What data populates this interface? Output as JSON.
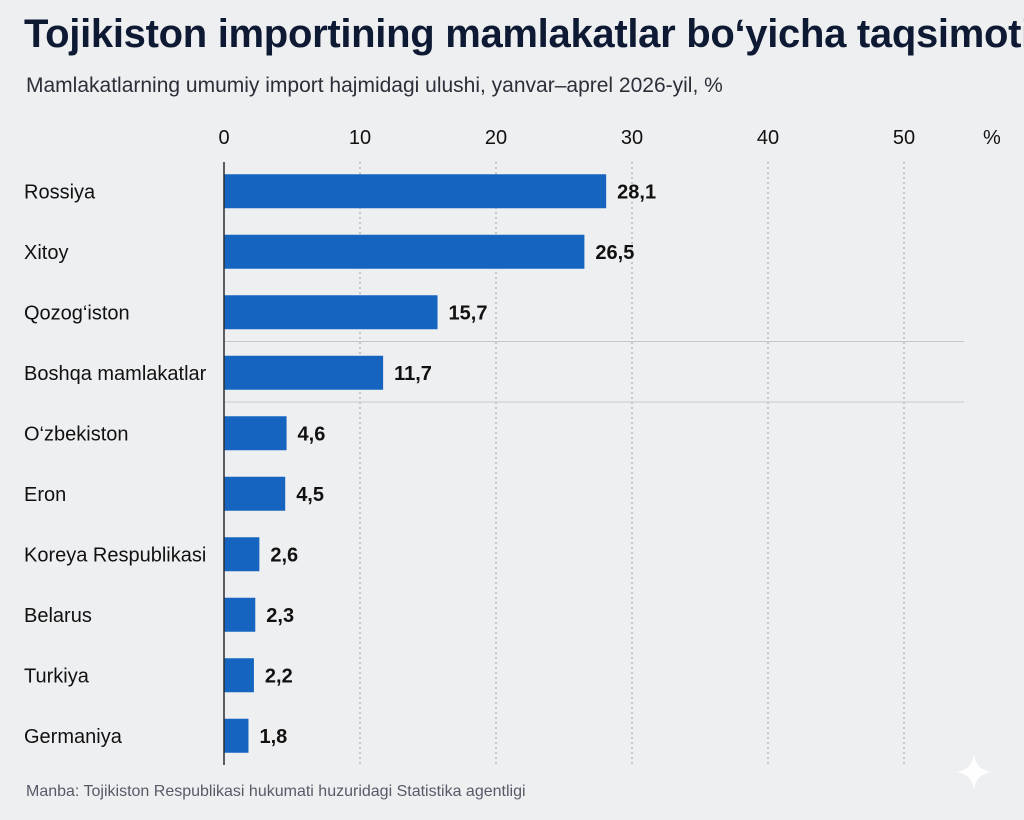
{
  "header": {
    "title": "Tojikiston importining mamlakatlar bo‘yicha taqsimoti",
    "subtitle": "Mamlakatlarning umumiy import hajmidagi ulushi, yanvar–aprel 2026-yil, %"
  },
  "footer": {
    "source": "Manba: Tojikiston Respublikasi hukumati huzuridagi Statistika agentligi"
  },
  "chart_data": {
    "type": "bar",
    "orientation": "horizontal",
    "title": "Tojikiston importining mamlakatlar bo‘yicha taqsimoti",
    "subtitle": "Mamlakatlarning umumiy import hajmidagi ulushi, yanvar–aprel 2026-yil, %",
    "categories": [
      "Rossiya",
      "Xitoy",
      "Qozog‘iston",
      "Boshqa mamlakatlar",
      "O‘zbekiston",
      "Eron",
      "Koreya Respublikasi",
      "Belarus",
      "Turkiya",
      "Germaniya"
    ],
    "values": [
      28.1,
      26.5,
      15.7,
      11.7,
      4.6,
      4.5,
      2.6,
      2.3,
      2.2,
      1.8
    ],
    "value_labels": [
      "28,1",
      "26,5",
      "15,7",
      "11,7",
      "4,6",
      "4,5",
      "2,6",
      "2,3",
      "2,2",
      "1,8"
    ],
    "xlim": [
      0,
      50
    ],
    "xticks": [
      0,
      10,
      20,
      30,
      40,
      50
    ],
    "xtick_labels": [
      "0",
      "10",
      "20",
      "30",
      "40",
      "50"
    ],
    "x_unit": "%",
    "axis_position": "top",
    "grid": true,
    "highlighted_row": "Boshqa mamlakatlar",
    "bar_color": "#1565c0"
  }
}
